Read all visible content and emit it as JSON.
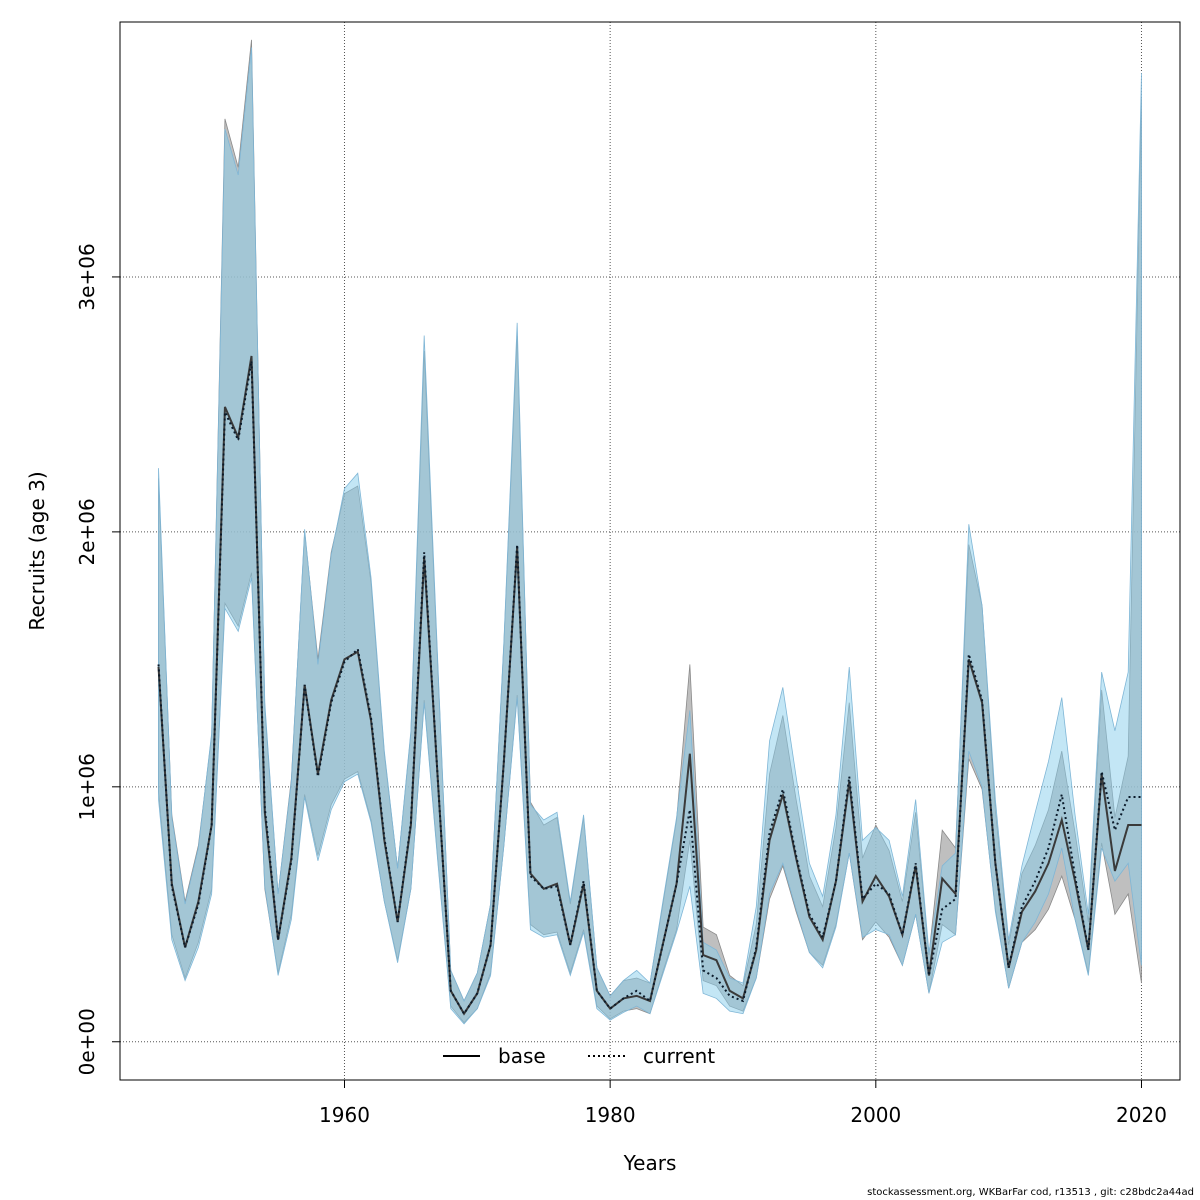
{
  "chart_data": {
    "type": "line",
    "title": "",
    "xlabel": "Years",
    "ylabel": "Recruits (age 3)",
    "xlim": [
      1943.1,
      2022.9
    ],
    "ylim": [
      -150000,
      4000000
    ],
    "x_ticks": [
      1960,
      1980,
      2000,
      2020
    ],
    "y_ticks": [
      0,
      1000000,
      2000000,
      3000000
    ],
    "y_tick_labels": [
      "0e+00",
      "1e+06",
      "2e+06",
      "3e+06"
    ],
    "grid": true,
    "legend_position": "bottom-center",
    "colors": {
      "base_band": "#a9a9a9",
      "current_band": "#87ceeb",
      "base_line": "#000000",
      "current_line": "#000000"
    },
    "x": [
      1946,
      1947,
      1948,
      1949,
      1950,
      1951,
      1952,
      1953,
      1954,
      1955,
      1956,
      1957,
      1958,
      1959,
      1960,
      1961,
      1962,
      1963,
      1964,
      1965,
      1966,
      1967,
      1968,
      1969,
      1970,
      1971,
      1972,
      1973,
      1974,
      1975,
      1976,
      1977,
      1978,
      1979,
      1980,
      1981,
      1982,
      1983,
      1984,
      1985,
      1986,
      1987,
      1988,
      1989,
      1990,
      1991,
      1992,
      1993,
      1994,
      1995,
      1996,
      1997,
      1998,
      1999,
      2000,
      2001,
      2002,
      2003,
      2004,
      2005,
      2006,
      2007,
      2008,
      2009,
      2010,
      2011,
      2012,
      2013,
      2014,
      2015,
      2016,
      2017,
      2018,
      2019,
      2020
    ],
    "series": [
      {
        "name": "base",
        "style": "solid",
        "values": [
          1470000,
          620000,
          370000,
          550000,
          850000,
          2490000,
          2370000,
          2690000,
          900000,
          400000,
          720000,
          1400000,
          1050000,
          1340000,
          1500000,
          1530000,
          1260000,
          790000,
          470000,
          850000,
          1900000,
          1050000,
          200000,
          110000,
          190000,
          380000,
          1100000,
          1940000,
          660000,
          600000,
          620000,
          380000,
          620000,
          200000,
          130000,
          170000,
          180000,
          160000,
          390000,
          620000,
          1130000,
          340000,
          320000,
          200000,
          170000,
          360000,
          790000,
          970000,
          720000,
          490000,
          400000,
          630000,
          1020000,
          550000,
          650000,
          570000,
          420000,
          690000,
          260000,
          640000,
          580000,
          1500000,
          1330000,
          700000,
          290000,
          510000,
          590000,
          700000,
          870000,
          630000,
          360000,
          1050000,
          670000,
          850000,
          850000
        ],
        "lower": [
          980000,
          420000,
          250000,
          390000,
          600000,
          1720000,
          1630000,
          1840000,
          600000,
          270000,
          500000,
          970000,
          730000,
          930000,
          1030000,
          1060000,
          870000,
          550000,
          320000,
          600000,
          1340000,
          730000,
          140000,
          75000,
          130000,
          270000,
          770000,
          1360000,
          460000,
          420000,
          430000,
          270000,
          440000,
          140000,
          90000,
          120000,
          130000,
          110000,
          280000,
          440000,
          790000,
          240000,
          220000,
          140000,
          120000,
          250000,
          560000,
          690000,
          510000,
          350000,
          300000,
          460000,
          740000,
          400000,
          470000,
          410000,
          300000,
          500000,
          190000,
          460000,
          420000,
          1110000,
          990000,
          520000,
          210000,
          390000,
          440000,
          520000,
          650000,
          480000,
          270000,
          780000,
          500000,
          580000,
          230000
        ],
        "upper": [
          2210000,
          890000,
          550000,
          770000,
          1200000,
          3620000,
          3430000,
          3930000,
          1310000,
          580000,
          1030000,
          2000000,
          1500000,
          1920000,
          2150000,
          2180000,
          1800000,
          1130000,
          680000,
          1210000,
          2710000,
          1500000,
          280000,
          160000,
          270000,
          540000,
          1560000,
          2770000,
          940000,
          850000,
          880000,
          540000,
          880000,
          290000,
          180000,
          240000,
          250000,
          230000,
          550000,
          870000,
          1480000,
          450000,
          420000,
          260000,
          220000,
          460000,
          1050000,
          1280000,
          950000,
          650000,
          530000,
          840000,
          1330000,
          720000,
          850000,
          750000,
          550000,
          900000,
          340000,
          830000,
          760000,
          1950000,
          1710000,
          910000,
          380000,
          660000,
          770000,
          910000,
          1140000,
          820000,
          470000,
          1380000,
          880000,
          1120000,
          3700000
        ]
      },
      {
        "name": "current",
        "style": "dotted",
        "values": [
          1480000,
          610000,
          370000,
          540000,
          850000,
          2470000,
          2360000,
          2670000,
          920000,
          400000,
          710000,
          1400000,
          1040000,
          1330000,
          1490000,
          1540000,
          1270000,
          800000,
          470000,
          860000,
          1920000,
          1050000,
          200000,
          110000,
          190000,
          380000,
          1100000,
          1950000,
          650000,
          600000,
          610000,
          380000,
          630000,
          200000,
          130000,
          170000,
          200000,
          160000,
          390000,
          620000,
          910000,
          280000,
          250000,
          180000,
          160000,
          370000,
          820000,
          990000,
          730000,
          500000,
          410000,
          630000,
          1040000,
          560000,
          620000,
          580000,
          420000,
          700000,
          260000,
          520000,
          560000,
          1520000,
          1340000,
          700000,
          290000,
          530000,
          630000,
          760000,
          970000,
          650000,
          360000,
          1060000,
          830000,
          960000,
          960000
        ],
        "lower": [
          950000,
          400000,
          240000,
          370000,
          580000,
          1700000,
          1610000,
          1820000,
          610000,
          260000,
          480000,
          960000,
          710000,
          910000,
          1020000,
          1050000,
          860000,
          550000,
          310000,
          600000,
          1330000,
          720000,
          130000,
          70000,
          130000,
          260000,
          770000,
          1350000,
          440000,
          410000,
          420000,
          260000,
          430000,
          130000,
          85000,
          115000,
          140000,
          110000,
          270000,
          430000,
          610000,
          190000,
          170000,
          120000,
          110000,
          250000,
          580000,
          700000,
          520000,
          350000,
          290000,
          450000,
          740000,
          410000,
          440000,
          420000,
          300000,
          500000,
          190000,
          390000,
          420000,
          1140000,
          1000000,
          510000,
          210000,
          390000,
          470000,
          580000,
          760000,
          480000,
          260000,
          760000,
          630000,
          700000,
          300000
        ],
        "upper": [
          2250000,
          880000,
          540000,
          760000,
          1210000,
          3580000,
          3400000,
          3900000,
          1330000,
          580000,
          1020000,
          2010000,
          1480000,
          1910000,
          2170000,
          2230000,
          1820000,
          1140000,
          680000,
          1220000,
          2770000,
          1520000,
          280000,
          160000,
          270000,
          540000,
          1570000,
          2820000,
          930000,
          870000,
          900000,
          550000,
          890000,
          290000,
          180000,
          240000,
          280000,
          230000,
          560000,
          880000,
          1300000,
          390000,
          360000,
          250000,
          230000,
          530000,
          1180000,
          1390000,
          1040000,
          700000,
          570000,
          890000,
          1470000,
          790000,
          840000,
          790000,
          570000,
          950000,
          350000,
          690000,
          740000,
          2030000,
          1710000,
          950000,
          400000,
          690000,
          900000,
          1100000,
          1350000,
          890000,
          500000,
          1450000,
          1220000,
          1450000,
          3800000
        ]
      }
    ]
  },
  "footer_text": "stockassessment.org, WKBarFar  cod, r13513 , git: c28bdc2a44ad"
}
